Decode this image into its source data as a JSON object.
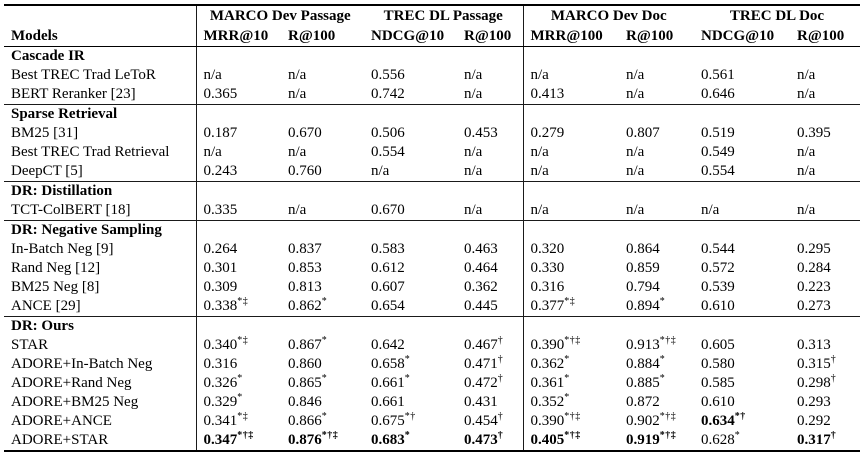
{
  "table": {
    "models_header": "Models",
    "col_groups": [
      {
        "label": "MARCO Dev Passage",
        "metrics": [
          "MRR@10",
          "R@100"
        ]
      },
      {
        "label": "TREC DL Passage",
        "metrics": [
          "NDCG@10",
          "R@100"
        ]
      },
      {
        "label": "MARCO Dev Doc",
        "metrics": [
          "MRR@100",
          "R@100"
        ]
      },
      {
        "label": "TREC DL Doc",
        "metrics": [
          "NDCG@10",
          "R@100"
        ]
      }
    ],
    "sections": [
      {
        "title": "Cascade IR",
        "rows": [
          {
            "model": "Best TREC Trad LeToR",
            "cells": [
              {
                "v": "n/a"
              },
              {
                "v": "n/a"
              },
              {
                "v": "0.556"
              },
              {
                "v": "n/a"
              },
              {
                "v": "n/a"
              },
              {
                "v": "n/a"
              },
              {
                "v": "0.561"
              },
              {
                "v": "n/a"
              }
            ]
          },
          {
            "model": "BERT Reranker [23]",
            "cells": [
              {
                "v": "0.365"
              },
              {
                "v": "n/a"
              },
              {
                "v": "0.742"
              },
              {
                "v": "n/a"
              },
              {
                "v": "0.413"
              },
              {
                "v": "n/a"
              },
              {
                "v": "0.646"
              },
              {
                "v": "n/a"
              }
            ]
          }
        ]
      },
      {
        "title": "Sparse Retrieval",
        "rows": [
          {
            "model": "BM25 [31]",
            "cells": [
              {
                "v": "0.187"
              },
              {
                "v": "0.670"
              },
              {
                "v": "0.506"
              },
              {
                "v": "0.453"
              },
              {
                "v": "0.279"
              },
              {
                "v": "0.807"
              },
              {
                "v": "0.519"
              },
              {
                "v": "0.395"
              }
            ]
          },
          {
            "model": "Best TREC Trad Retrieval",
            "cells": [
              {
                "v": "n/a"
              },
              {
                "v": "n/a"
              },
              {
                "v": "0.554"
              },
              {
                "v": "n/a"
              },
              {
                "v": "n/a"
              },
              {
                "v": "n/a"
              },
              {
                "v": "0.549"
              },
              {
                "v": "n/a"
              }
            ]
          },
          {
            "model": "DeepCT [5]",
            "cells": [
              {
                "v": "0.243"
              },
              {
                "v": "0.760"
              },
              {
                "v": "n/a"
              },
              {
                "v": "n/a"
              },
              {
                "v": "n/a"
              },
              {
                "v": "n/a"
              },
              {
                "v": "0.554"
              },
              {
                "v": "n/a"
              }
            ]
          }
        ]
      },
      {
        "title": "DR: Distillation",
        "rows": [
          {
            "model": "TCT-ColBERT [18]",
            "cells": [
              {
                "v": "0.335"
              },
              {
                "v": "n/a"
              },
              {
                "v": "0.670"
              },
              {
                "v": "n/a"
              },
              {
                "v": "n/a"
              },
              {
                "v": "n/a"
              },
              {
                "v": "n/a"
              },
              {
                "v": "n/a"
              }
            ]
          }
        ]
      },
      {
        "title": "DR: Negative Sampling",
        "rows": [
          {
            "model": "In-Batch Neg [9]",
            "cells": [
              {
                "v": "0.264"
              },
              {
                "v": "0.837"
              },
              {
                "v": "0.583"
              },
              {
                "v": "0.463"
              },
              {
                "v": "0.320"
              },
              {
                "v": "0.864"
              },
              {
                "v": "0.544"
              },
              {
                "v": "0.295"
              }
            ]
          },
          {
            "model": "Rand Neg [12]",
            "cells": [
              {
                "v": "0.301"
              },
              {
                "v": "0.853"
              },
              {
                "v": "0.612"
              },
              {
                "v": "0.464"
              },
              {
                "v": "0.330"
              },
              {
                "v": "0.859"
              },
              {
                "v": "0.572"
              },
              {
                "v": "0.284"
              }
            ]
          },
          {
            "model": "BM25 Neg [8]",
            "cells": [
              {
                "v": "0.309"
              },
              {
                "v": "0.813"
              },
              {
                "v": "0.607"
              },
              {
                "v": "0.362"
              },
              {
                "v": "0.316"
              },
              {
                "v": "0.794"
              },
              {
                "v": "0.539"
              },
              {
                "v": "0.223"
              }
            ]
          },
          {
            "model": "ANCE [29]",
            "cells": [
              {
                "v": "0.338",
                "s": "*‡"
              },
              {
                "v": "0.862",
                "s": "*"
              },
              {
                "v": "0.654"
              },
              {
                "v": "0.445"
              },
              {
                "v": "0.377",
                "s": "*‡"
              },
              {
                "v": "0.894",
                "s": "*"
              },
              {
                "v": "0.610"
              },
              {
                "v": "0.273"
              }
            ]
          }
        ]
      },
      {
        "title": "DR: Ours",
        "rows": [
          {
            "model": "STAR",
            "cells": [
              {
                "v": "0.340",
                "s": "*‡"
              },
              {
                "v": "0.867",
                "s": "*"
              },
              {
                "v": "0.642"
              },
              {
                "v": "0.467",
                "s": "†"
              },
              {
                "v": "0.390",
                "s": "*†‡"
              },
              {
                "v": "0.913",
                "s": "*†‡"
              },
              {
                "v": "0.605"
              },
              {
                "v": "0.313"
              }
            ]
          },
          {
            "model": "ADORE+In-Batch Neg",
            "cells": [
              {
                "v": "0.316"
              },
              {
                "v": "0.860"
              },
              {
                "v": "0.658",
                "s": "*"
              },
              {
                "v": "0.471",
                "s": "†"
              },
              {
                "v": "0.362",
                "s": "*"
              },
              {
                "v": "0.884",
                "s": "*"
              },
              {
                "v": "0.580"
              },
              {
                "v": "0.315",
                "s": "†"
              }
            ]
          },
          {
            "model": "ADORE+Rand Neg",
            "cells": [
              {
                "v": "0.326",
                "s": "*"
              },
              {
                "v": "0.865",
                "s": "*"
              },
              {
                "v": "0.661",
                "s": "*"
              },
              {
                "v": "0.472",
                "s": "†"
              },
              {
                "v": "0.361",
                "s": "*"
              },
              {
                "v": "0.885",
                "s": "*"
              },
              {
                "v": "0.585"
              },
              {
                "v": "0.298",
                "s": "†"
              }
            ]
          },
          {
            "model": "ADORE+BM25 Neg",
            "cells": [
              {
                "v": "0.329",
                "s": "*"
              },
              {
                "v": "0.846"
              },
              {
                "v": "0.661"
              },
              {
                "v": "0.431"
              },
              {
                "v": "0.352",
                "s": "*"
              },
              {
                "v": "0.872"
              },
              {
                "v": "0.610"
              },
              {
                "v": "0.293"
              }
            ]
          },
          {
            "model": "ADORE+ANCE",
            "cells": [
              {
                "v": "0.341",
                "s": "*‡"
              },
              {
                "v": "0.866",
                "s": "*"
              },
              {
                "v": "0.675",
                "s": "*†"
              },
              {
                "v": "0.454",
                "s": "†"
              },
              {
                "v": "0.390",
                "s": "*†‡"
              },
              {
                "v": "0.902",
                "s": "*†‡"
              },
              {
                "v": "0.634",
                "s": "*†",
                "b": true
              },
              {
                "v": "0.292"
              }
            ]
          },
          {
            "model": "ADORE+STAR",
            "cells": [
              {
                "v": "0.347",
                "s": "*†‡",
                "b": true
              },
              {
                "v": "0.876",
                "s": "*†‡",
                "b": true
              },
              {
                "v": "0.683",
                "s": "*",
                "b": true
              },
              {
                "v": "0.473",
                "s": "†",
                "b": true
              },
              {
                "v": "0.405",
                "s": "*†‡",
                "b": true
              },
              {
                "v": "0.919",
                "s": "*†‡",
                "b": true
              },
              {
                "v": "0.628",
                "s": "*"
              },
              {
                "v": "0.317",
                "s": "†",
                "b": true
              }
            ]
          }
        ]
      }
    ]
  }
}
